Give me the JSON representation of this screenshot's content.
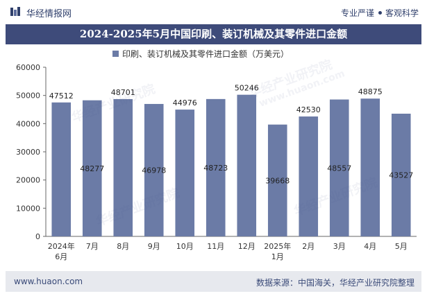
{
  "header": {
    "brand": "华经情报网",
    "tag1": "专业严谨",
    "tag2": "客观科学"
  },
  "watermark": {
    "text1": "华经产业研究院",
    "text2": "www.huaon.com"
  },
  "chart_data": {
    "type": "bar",
    "title": "2024-2025年5月中国印刷、装订机械及其零件进口金额",
    "legend_position": "top",
    "ylim": [
      0,
      60000
    ],
    "yticks": [
      0,
      10000,
      20000,
      30000,
      40000,
      50000,
      60000
    ],
    "grid": false,
    "categories": [
      "2024年6月",
      "7月",
      "8月",
      "9月",
      "10月",
      "11月",
      "12月",
      "2025年1月",
      "2月",
      "3月",
      "4月",
      "5月"
    ],
    "series": [
      {
        "name": "印刷、装订机械及其零件进口金额（万美元）",
        "color": "#6b7ba6",
        "values": [
          47512,
          48277,
          48701,
          46978,
          44976,
          48723,
          50246,
          39668,
          42530,
          48557,
          48875,
          43527
        ]
      }
    ]
  },
  "footer": {
    "website": "www.huaon.com",
    "source": "数据来源：中国海关，华经产业研究院整理"
  }
}
